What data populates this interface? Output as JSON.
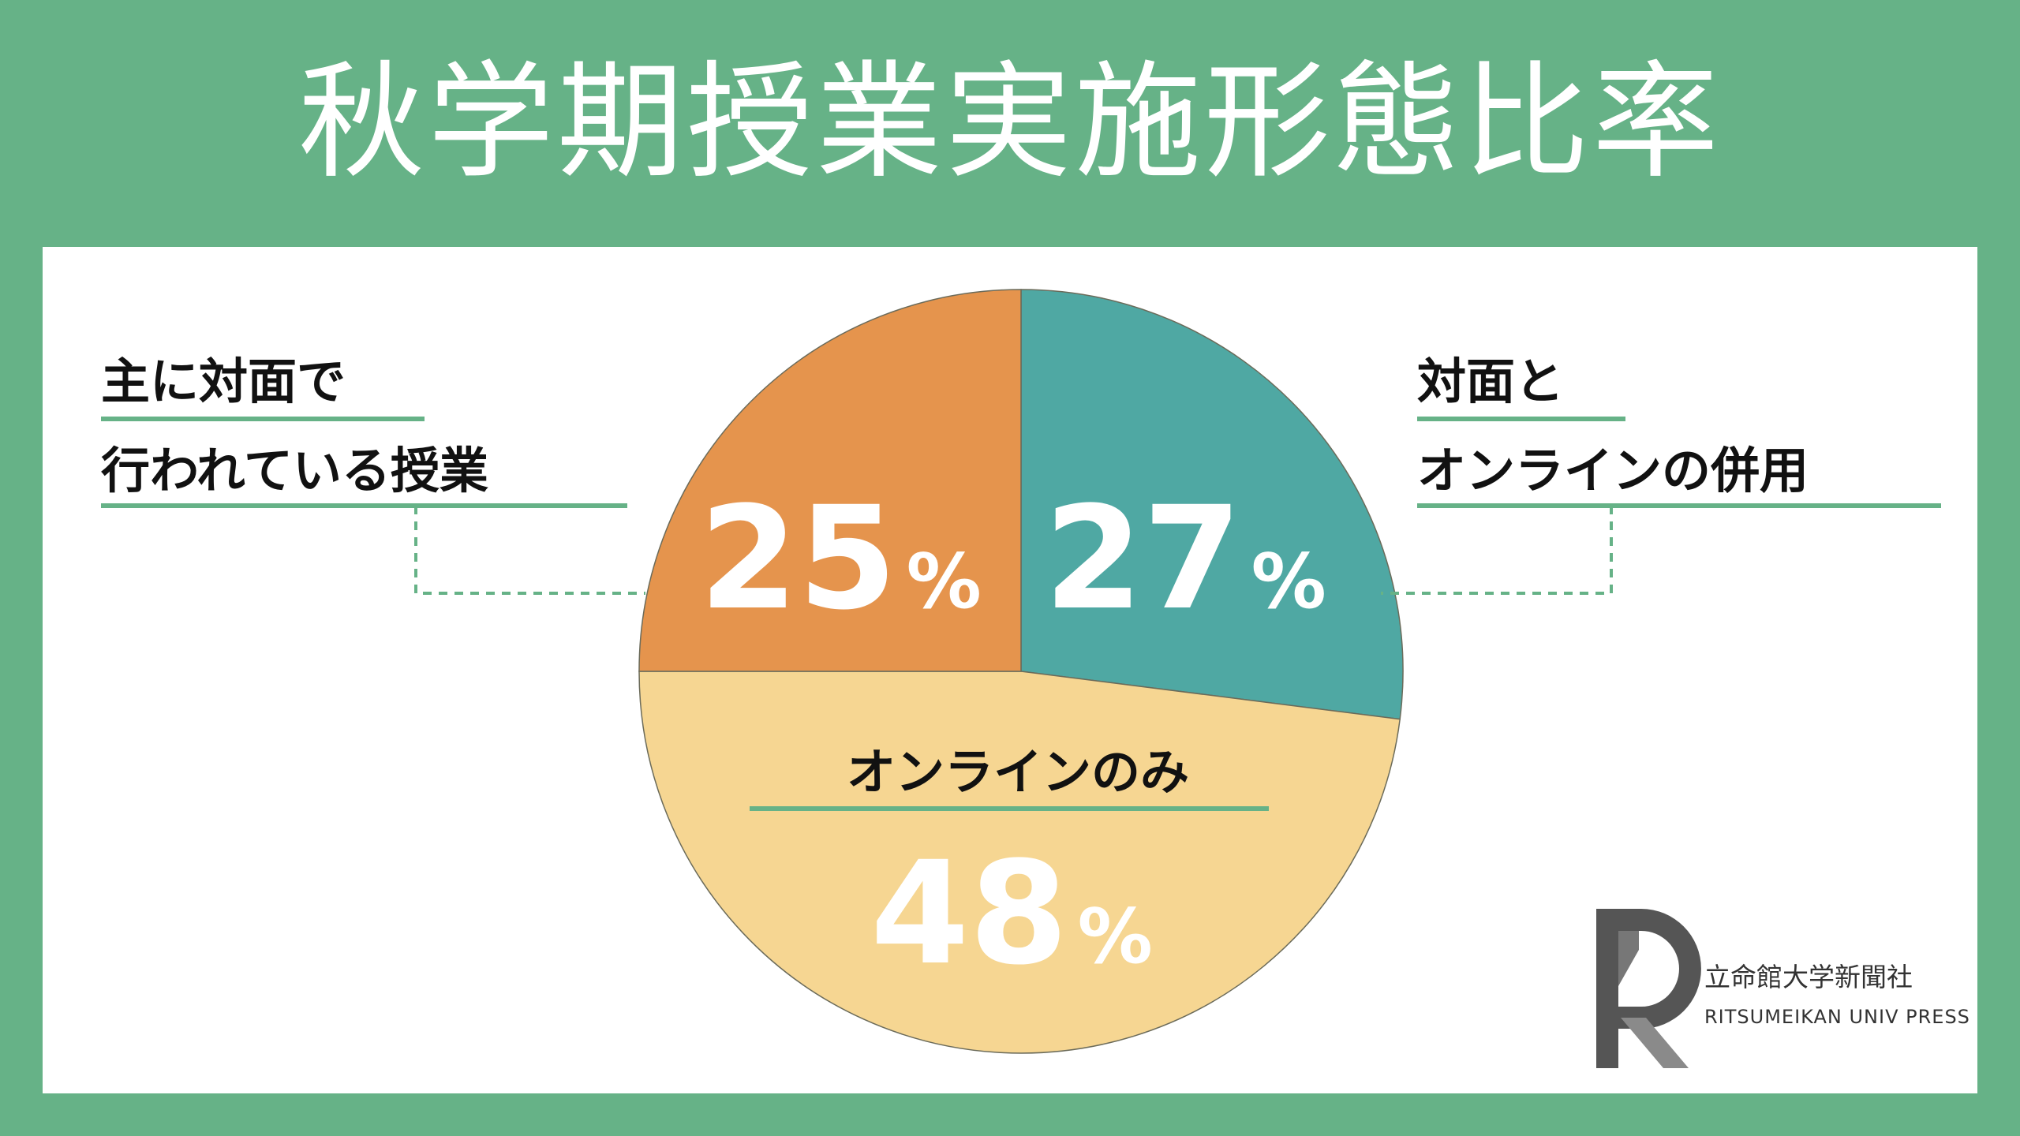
{
  "title": "秋学期授業実施形態比率",
  "colors": {
    "background": "#66b287",
    "panel": "#ffffff",
    "accent_line": "#66b287",
    "slice_orange": "#e5944d",
    "slice_teal": "#4fa8a3",
    "slice_yellow": "#f6d692",
    "slice_stroke": "#6b6b5a"
  },
  "chart_data": {
    "type": "pie",
    "title": "秋学期授業実施形態比率",
    "unit": "%",
    "start": "12 o'clock",
    "direction": "clockwise",
    "slices": [
      {
        "label": "対面とオンラインの併用",
        "label_lines": [
          "対面と",
          "オンラインの併用"
        ],
        "value": 27,
        "value_text": "27",
        "color": "#4fa8a3"
      },
      {
        "label": "オンラインのみ",
        "label_lines": [
          "オンラインのみ"
        ],
        "value": 48,
        "value_text": "48",
        "color": "#f6d692"
      },
      {
        "label": "主に対面で行われている授業",
        "label_lines": [
          "主に対面で",
          "行われている授業"
        ],
        "value": 25,
        "value_text": "25",
        "color": "#e5944d"
      }
    ]
  },
  "logo": {
    "name_ja": "立命館大学新聞社",
    "name_en": "RITSUMEIKAN UNIV PRESS"
  }
}
